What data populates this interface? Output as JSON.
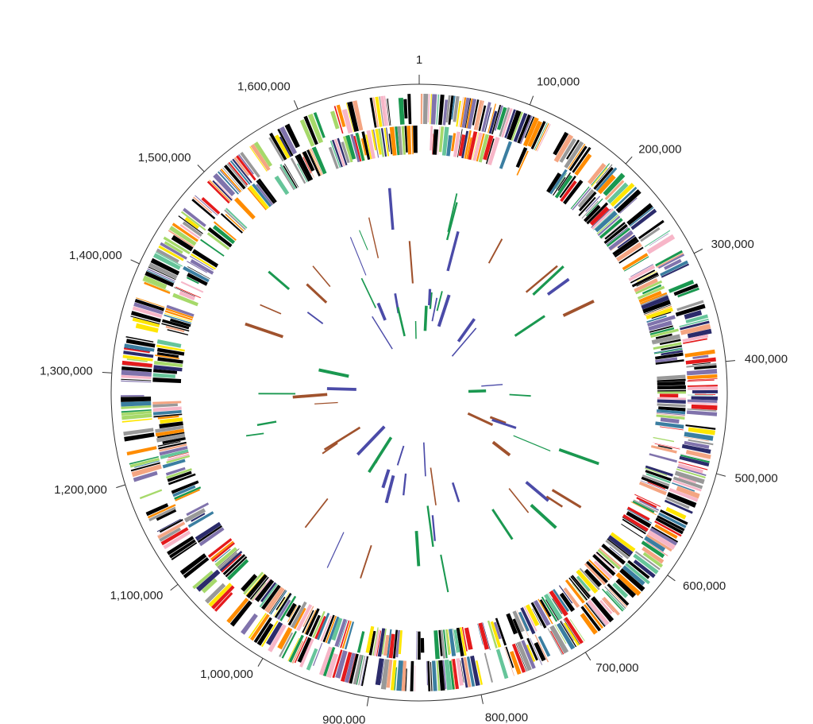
{
  "map": {
    "ticks": [
      "1",
      "100,000",
      "200,000",
      "300,000",
      "400,000",
      "500,000",
      "600,000",
      "700,000",
      "800,000",
      "900,000",
      "1,000,000",
      "1,100,000",
      "1,200,000",
      "1,300,000",
      "1,400,000",
      "1,500,000",
      "1,600,000"
    ]
  }
}
